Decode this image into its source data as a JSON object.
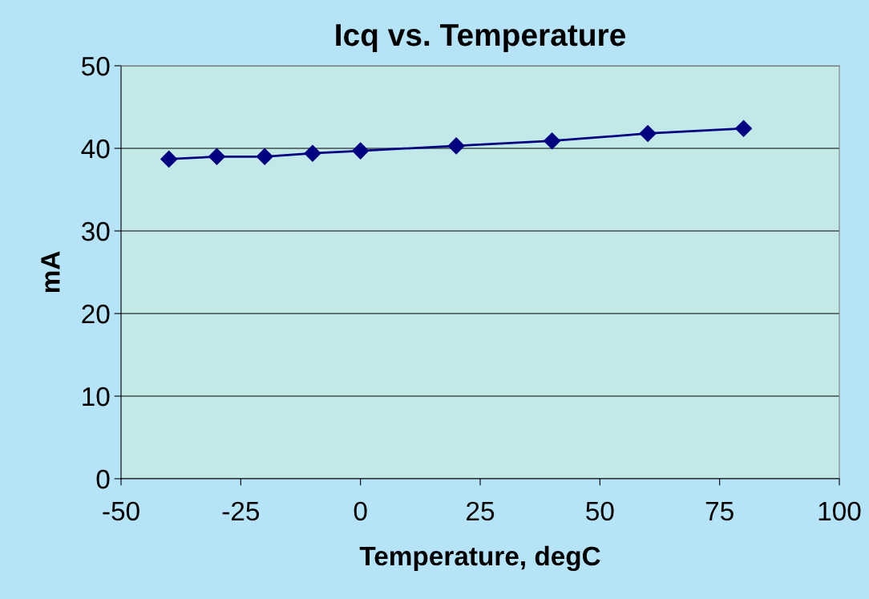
{
  "chart_data": {
    "type": "line",
    "title": "Icq vs. Temperature",
    "xlabel": "Temperature, degC",
    "ylabel": "mA",
    "x": [
      -40,
      -30,
      -20,
      -10,
      0,
      20,
      40,
      60,
      80
    ],
    "series": [
      {
        "color": "#000080",
        "values": [
          38.7,
          39.0,
          39.0,
          39.4,
          39.7,
          40.3,
          40.9,
          41.8,
          42.4
        ]
      }
    ],
    "xlim": [
      -50,
      100
    ],
    "xticks": [
      -50,
      -25,
      0,
      25,
      50,
      75,
      100
    ],
    "ylim": [
      0,
      50
    ],
    "yticks": [
      0,
      10,
      20,
      30,
      40,
      50
    ],
    "grid": "y",
    "marker": "diamond",
    "line_style": "solid",
    "legend": false
  }
}
